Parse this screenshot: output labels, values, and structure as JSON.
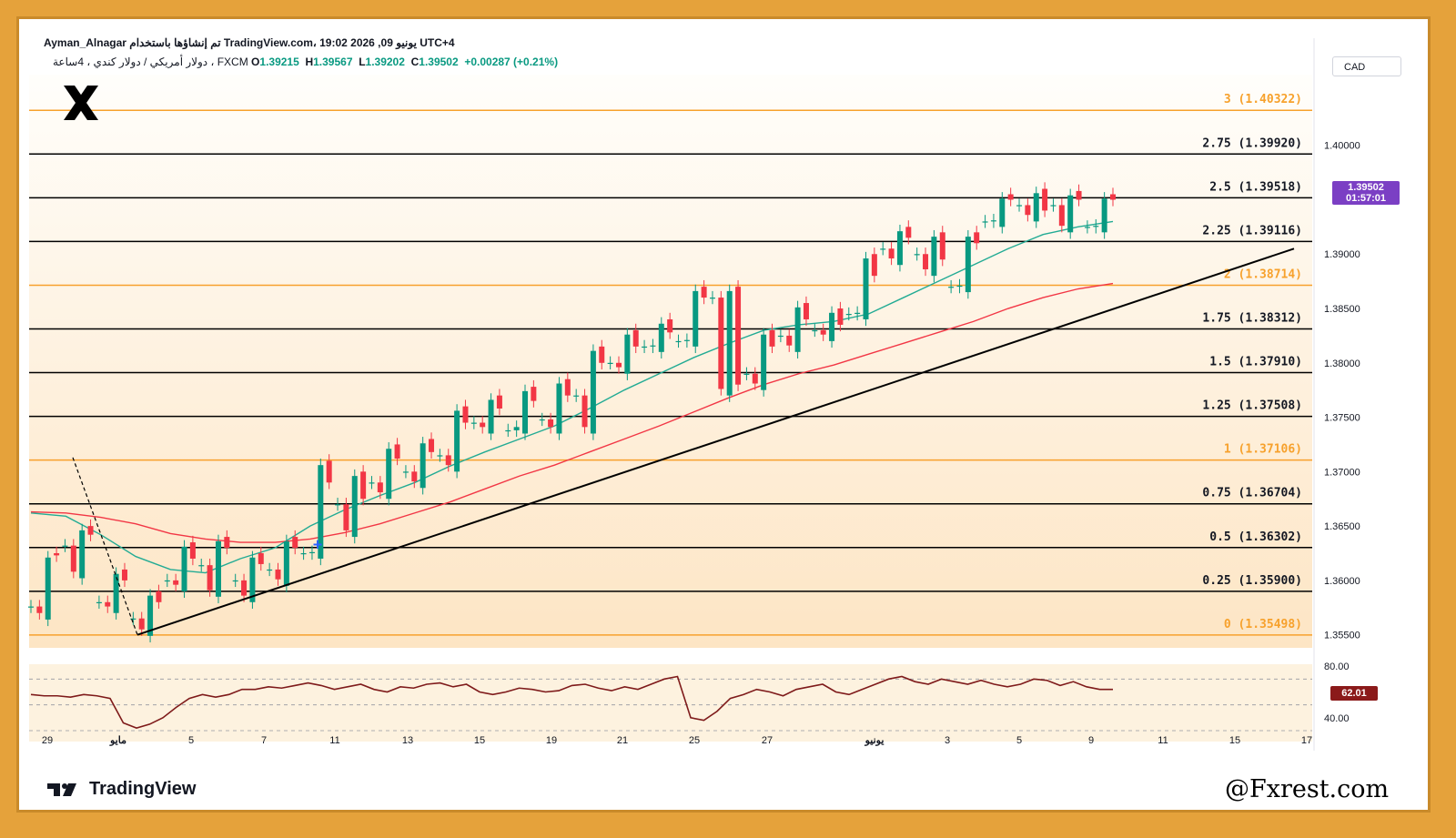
{
  "header": {
    "line1": "Ayman_Alnagar تم إنشاؤها باستخدام TradingView.com، 19:02 2026 ,09 يونيو UTC+4",
    "symbol": "دولار أمريكي / دولار كندي ، 4ساعة ، FXCM",
    "open_label": "O",
    "open": "1.39215",
    "high_label": "H",
    "high": "1.39567",
    "low_label": "L",
    "low": "1.39202",
    "close_label": "C",
    "close": "1.39502",
    "change": "+0.00287 (+0.21%)"
  },
  "currency": "CAD",
  "last_price": {
    "price": "1.39502",
    "countdown": "01:57:01",
    "color": "#7b3fc4"
  },
  "rsi_value": {
    "label": "62.01",
    "color": "#8b1a1a"
  },
  "brand": {
    "name": "TradingView"
  },
  "watermark": "@Fxrest.com",
  "chart_data": [
    {
      "type": "candlestick",
      "instrument": "USDCAD",
      "timeframe": "4H",
      "y_ticks": [
        "1.40000",
        "1.39000",
        "1.38500",
        "1.38000",
        "1.37500",
        "1.37000",
        "1.36500",
        "1.36000",
        "1.35500"
      ],
      "x_ticks": [
        "29",
        "مايو",
        "5",
        "7",
        "11",
        "13",
        "15",
        "19",
        "21",
        "25",
        "27",
        "يونيو",
        "3",
        "5",
        "9",
        "11",
        "15",
        "17"
      ],
      "ylim": [
        1.3538,
        1.4065
      ],
      "fib_levels": [
        {
          "label": "0 (1.35498)",
          "value": 1.35498,
          "color": "#f7a12c"
        },
        {
          "label": "0.25 (1.35900)",
          "value": 1.359,
          "color": "#000000"
        },
        {
          "label": "0.5 (1.36302)",
          "value": 1.36302,
          "color": "#000000"
        },
        {
          "label": "0.75 (1.36704)",
          "value": 1.36704,
          "color": "#000000"
        },
        {
          "label": "1 (1.37106)",
          "value": 1.37106,
          "color": "#f7a12c"
        },
        {
          "label": "1.25 (1.37508)",
          "value": 1.37508,
          "color": "#000000"
        },
        {
          "label": "1.5 (1.37910)",
          "value": 1.3791,
          "color": "#000000"
        },
        {
          "label": "1.75 (1.38312)",
          "value": 1.38312,
          "color": "#000000"
        },
        {
          "label": "2 (1.38714)",
          "value": 1.38714,
          "color": "#f7a12c"
        },
        {
          "label": "2.25 (1.39116)",
          "value": 1.39116,
          "color": "#000000"
        },
        {
          "label": "2.5 (1.39518)",
          "value": 1.39518,
          "color": "#000000"
        },
        {
          "label": "2.75 (1.39920)",
          "value": 1.3992,
          "color": "#000000"
        },
        {
          "label": "3 (1.40322)",
          "value": 1.40322,
          "color": "#f7a12c"
        }
      ],
      "trend_points": [
        [
          1.3576,
          1.3564,
          1.3625,
          1.3623
        ],
        [
          1.3632,
          1.3602,
          1.365,
          1.3642
        ],
        [
          1.358,
          1.357,
          1.361,
          1.36
        ],
        [
          1.3565,
          1.3549,
          1.359,
          1.358
        ],
        [
          1.36,
          1.359,
          1.3635,
          1.362
        ],
        [
          1.3614,
          1.3585,
          1.364,
          1.363
        ],
        [
          1.36,
          1.358,
          1.3625,
          1.3615
        ],
        [
          1.361,
          1.3595,
          1.364,
          1.363
        ],
        [
          1.3625,
          1.362,
          1.371,
          1.369
        ],
        [
          1.367,
          1.364,
          1.37,
          1.3675
        ],
        [
          1.369,
          1.3675,
          1.3725,
          1.3712
        ],
        [
          1.37,
          1.3685,
          1.373,
          1.3718
        ],
        [
          1.3715,
          1.37,
          1.376,
          1.3745
        ],
        [
          1.3745,
          1.3735,
          1.377,
          1.3758
        ],
        [
          1.3738,
          1.3735,
          1.3778,
          1.3765
        ],
        [
          1.3748,
          1.3735,
          1.3785,
          1.377
        ],
        [
          1.377,
          1.3735,
          1.3815,
          1.38
        ],
        [
          1.38,
          1.379,
          1.383,
          1.3815
        ],
        [
          1.3815,
          1.381,
          1.384,
          1.3828
        ],
        [
          1.382,
          1.3815,
          1.387,
          1.386
        ],
        [
          1.386,
          1.377,
          1.387,
          1.378
        ],
        [
          1.379,
          1.3775,
          1.383,
          1.3815
        ],
        [
          1.3825,
          1.381,
          1.3855,
          1.384
        ],
        [
          1.383,
          1.382,
          1.385,
          1.3835
        ],
        [
          1.3845,
          1.384,
          1.39,
          1.388
        ],
        [
          1.3905,
          1.389,
          1.3925,
          1.3915
        ],
        [
          1.39,
          1.388,
          1.392,
          1.3895
        ],
        [
          1.387,
          1.3865,
          1.392,
          1.391
        ],
        [
          1.393,
          1.3925,
          1.3955,
          1.395
        ],
        [
          1.3945,
          1.393,
          1.396,
          1.394
        ],
        [
          1.3945,
          1.392,
          1.3958,
          1.395
        ],
        [
          1.3925,
          1.392,
          1.3955,
          1.395
        ]
      ],
      "ema_fast": [
        1.3662,
        1.3659,
        1.3642,
        1.3622,
        1.361,
        1.3607,
        1.362,
        1.363,
        1.365,
        1.3665,
        1.3678,
        1.369,
        1.3705,
        1.3718,
        1.373,
        1.3742,
        1.3758,
        1.3775,
        1.379,
        1.3805,
        1.3818,
        1.383,
        1.3835,
        1.3838,
        1.3845,
        1.386,
        1.3875,
        1.389,
        1.3905,
        1.3918,
        1.3925,
        1.393
      ],
      "ema_slow": [
        1.3663,
        1.3662,
        1.3658,
        1.3652,
        1.3643,
        1.3638,
        1.3635,
        1.3635,
        1.3638,
        1.3644,
        1.3652,
        1.3662,
        1.3672,
        1.3684,
        1.3696,
        1.3706,
        1.3718,
        1.373,
        1.3742,
        1.3755,
        1.3768,
        1.378,
        1.379,
        1.3798,
        1.3808,
        1.3818,
        1.3828,
        1.3838,
        1.385,
        1.386,
        1.3868,
        1.3873
      ],
      "trendline": [
        [
          1.355,
          0
        ],
        [
          1.3905,
          1
        ]
      ],
      "series": [
        {
          "name": "",
          "color": "#22ab94"
        },
        {
          "name": "",
          "color": "#f23645"
        }
      ]
    },
    {
      "type": "line",
      "indicator": "RSI",
      "ylim": [
        30,
        90
      ],
      "y_ticks": [
        "80.00",
        "40.00"
      ],
      "bands": [
        70,
        50,
        30
      ],
      "values": [
        58,
        57,
        57,
        56,
        58,
        57,
        55,
        36,
        32,
        35,
        40,
        48,
        55,
        58,
        56,
        58,
        62,
        62,
        64,
        63,
        65,
        67,
        65,
        62,
        64,
        66,
        62,
        60,
        64,
        63,
        66,
        67,
        64,
        66,
        60,
        58,
        60,
        63,
        62,
        60,
        61,
        65,
        66,
        63,
        61,
        64,
        62,
        66,
        70,
        72,
        40,
        38,
        45,
        55,
        58,
        62,
        60,
        57,
        62,
        64,
        66,
        60,
        58,
        62,
        66,
        70,
        72,
        68,
        66,
        70,
        68,
        66,
        69,
        66,
        64,
        66,
        70,
        69,
        65,
        68,
        64,
        62,
        62
      ]
    }
  ]
}
